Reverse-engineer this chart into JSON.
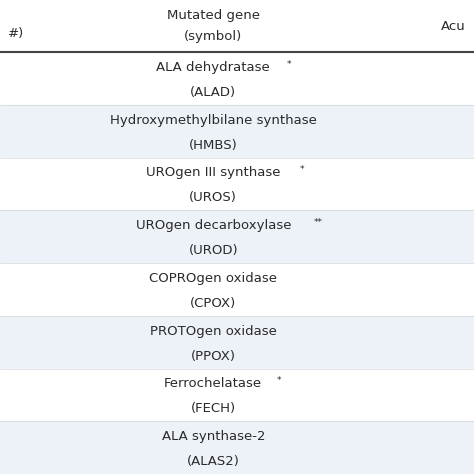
{
  "header_line1": "Mutated gene",
  "header_line2": "(symbol)",
  "header_right": "Acu",
  "header_left": "#)",
  "rows": [
    {
      "base": "ALA dehydratase",
      "sup": "*",
      "sym": "(ALAD)",
      "bg": "#ffffff"
    },
    {
      "base": "Hydroxymethylbilane synthase",
      "sup": "",
      "sym": "(HMBS)",
      "bg": "#edf1f8"
    },
    {
      "base": "UROgen III synthase",
      "sup": "*",
      "sym": "(UROS)",
      "bg": "#ffffff"
    },
    {
      "base": "UROgen decarboxylase",
      "sup": "**",
      "sym": "(UROD)",
      "bg": "#edf1f8"
    },
    {
      "base": "COPROgen oxidase",
      "sup": "",
      "sym": "(CPOX)",
      "bg": "#ffffff"
    },
    {
      "base": "PROTOgen oxidase",
      "sup": "",
      "sym": "(PPOX)",
      "bg": "#edf1f8"
    },
    {
      "base": "Ferrochelatase",
      "sup": "*",
      "sym": "(FECH)",
      "bg": "#ffffff"
    },
    {
      "base": "ALA synthase-2",
      "sup": "",
      "sym": "(ALAS2)",
      "bg": "#edf1f8"
    }
  ],
  "fig_bg": "#ffffff",
  "text_color": "#2a2a2a",
  "font_size_header": 9.5,
  "font_size_row": 9.5,
  "font_size_sup": 6.5
}
